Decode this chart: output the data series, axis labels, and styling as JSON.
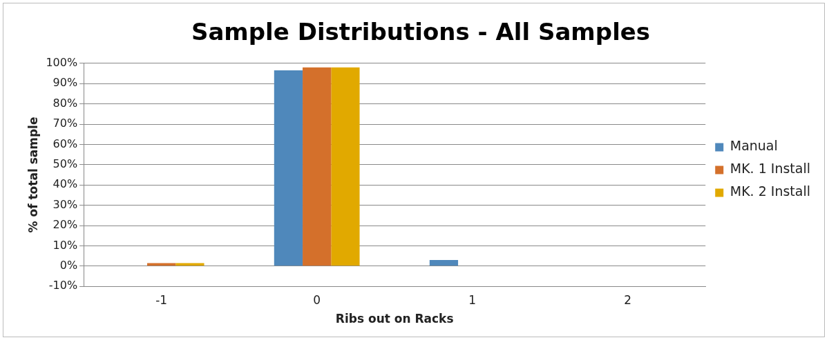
{
  "chart_data": {
    "type": "bar",
    "title": "Sample Distributions - All Samples",
    "xlabel": "Ribs out on Racks",
    "ylabel": "% of total sample",
    "categories": [
      "-1",
      "0",
      "1",
      "2"
    ],
    "series": [
      {
        "name": "Manual",
        "color": "#4f88bb",
        "values": [
          0,
          96.5,
          3,
          0
        ]
      },
      {
        "name": "MK. 1 Install",
        "color": "#d4702b",
        "values": [
          1.5,
          98,
          0,
          0
        ]
      },
      {
        "name": "MK. 2 Install",
        "color": "#e1a900",
        "values": [
          1.5,
          98,
          0,
          0
        ]
      }
    ],
    "ylim": [
      -10,
      100
    ],
    "yticks": [
      {
        "value": -10,
        "label": "-10%"
      },
      {
        "value": 0,
        "label": "0%"
      },
      {
        "value": 10,
        "label": "10%"
      },
      {
        "value": 20,
        "label": "20%"
      },
      {
        "value": 30,
        "label": "30%"
      },
      {
        "value": 40,
        "label": "40%"
      },
      {
        "value": 50,
        "label": "50%"
      },
      {
        "value": 60,
        "label": "60%"
      },
      {
        "value": 70,
        "label": "70%"
      },
      {
        "value": 80,
        "label": "80%"
      },
      {
        "value": 90,
        "label": "90%"
      },
      {
        "value": 100,
        "label": "100%"
      }
    ],
    "grid": "y",
    "legend": "right"
  }
}
